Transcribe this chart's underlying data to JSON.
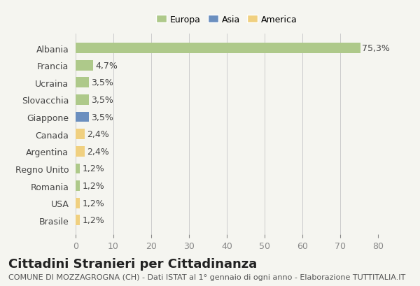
{
  "countries": [
    "Albania",
    "Francia",
    "Ucraina",
    "Slovacchia",
    "Giappone",
    "Canada",
    "Argentina",
    "Regno Unito",
    "Romania",
    "USA",
    "Brasile"
  ],
  "values": [
    75.3,
    4.7,
    3.5,
    3.5,
    3.5,
    2.4,
    2.4,
    1.2,
    1.2,
    1.2,
    1.2
  ],
  "labels": [
    "75,3%",
    "4,7%",
    "3,5%",
    "3,5%",
    "3,5%",
    "2,4%",
    "2,4%",
    "1,2%",
    "1,2%",
    "1,2%",
    "1,2%"
  ],
  "continents": [
    "Europa",
    "Europa",
    "Europa",
    "Europa",
    "Asia",
    "America",
    "America",
    "Europa",
    "Europa",
    "America",
    "America"
  ],
  "colors": {
    "Europa": "#aec98a",
    "Asia": "#6b8fbf",
    "America": "#f0d080"
  },
  "legend_colors": {
    "Europa": "#aec98a",
    "Asia": "#6b8fbf",
    "America": "#f0d080"
  },
  "background_color": "#f5f5f0",
  "grid_color": "#cccccc",
  "xlim": [
    0,
    80
  ],
  "xticks": [
    0,
    10,
    20,
    30,
    40,
    50,
    60,
    70,
    80
  ],
  "title": "Cittadini Stranieri per Cittadinanza",
  "subtitle": "COMUNE DI MOZZAGROGNA (CH) - Dati ISTAT al 1° gennaio di ogni anno - Elaborazione TUTTITALIA.IT",
  "title_fontsize": 13,
  "subtitle_fontsize": 8,
  "label_fontsize": 9,
  "tick_fontsize": 9
}
